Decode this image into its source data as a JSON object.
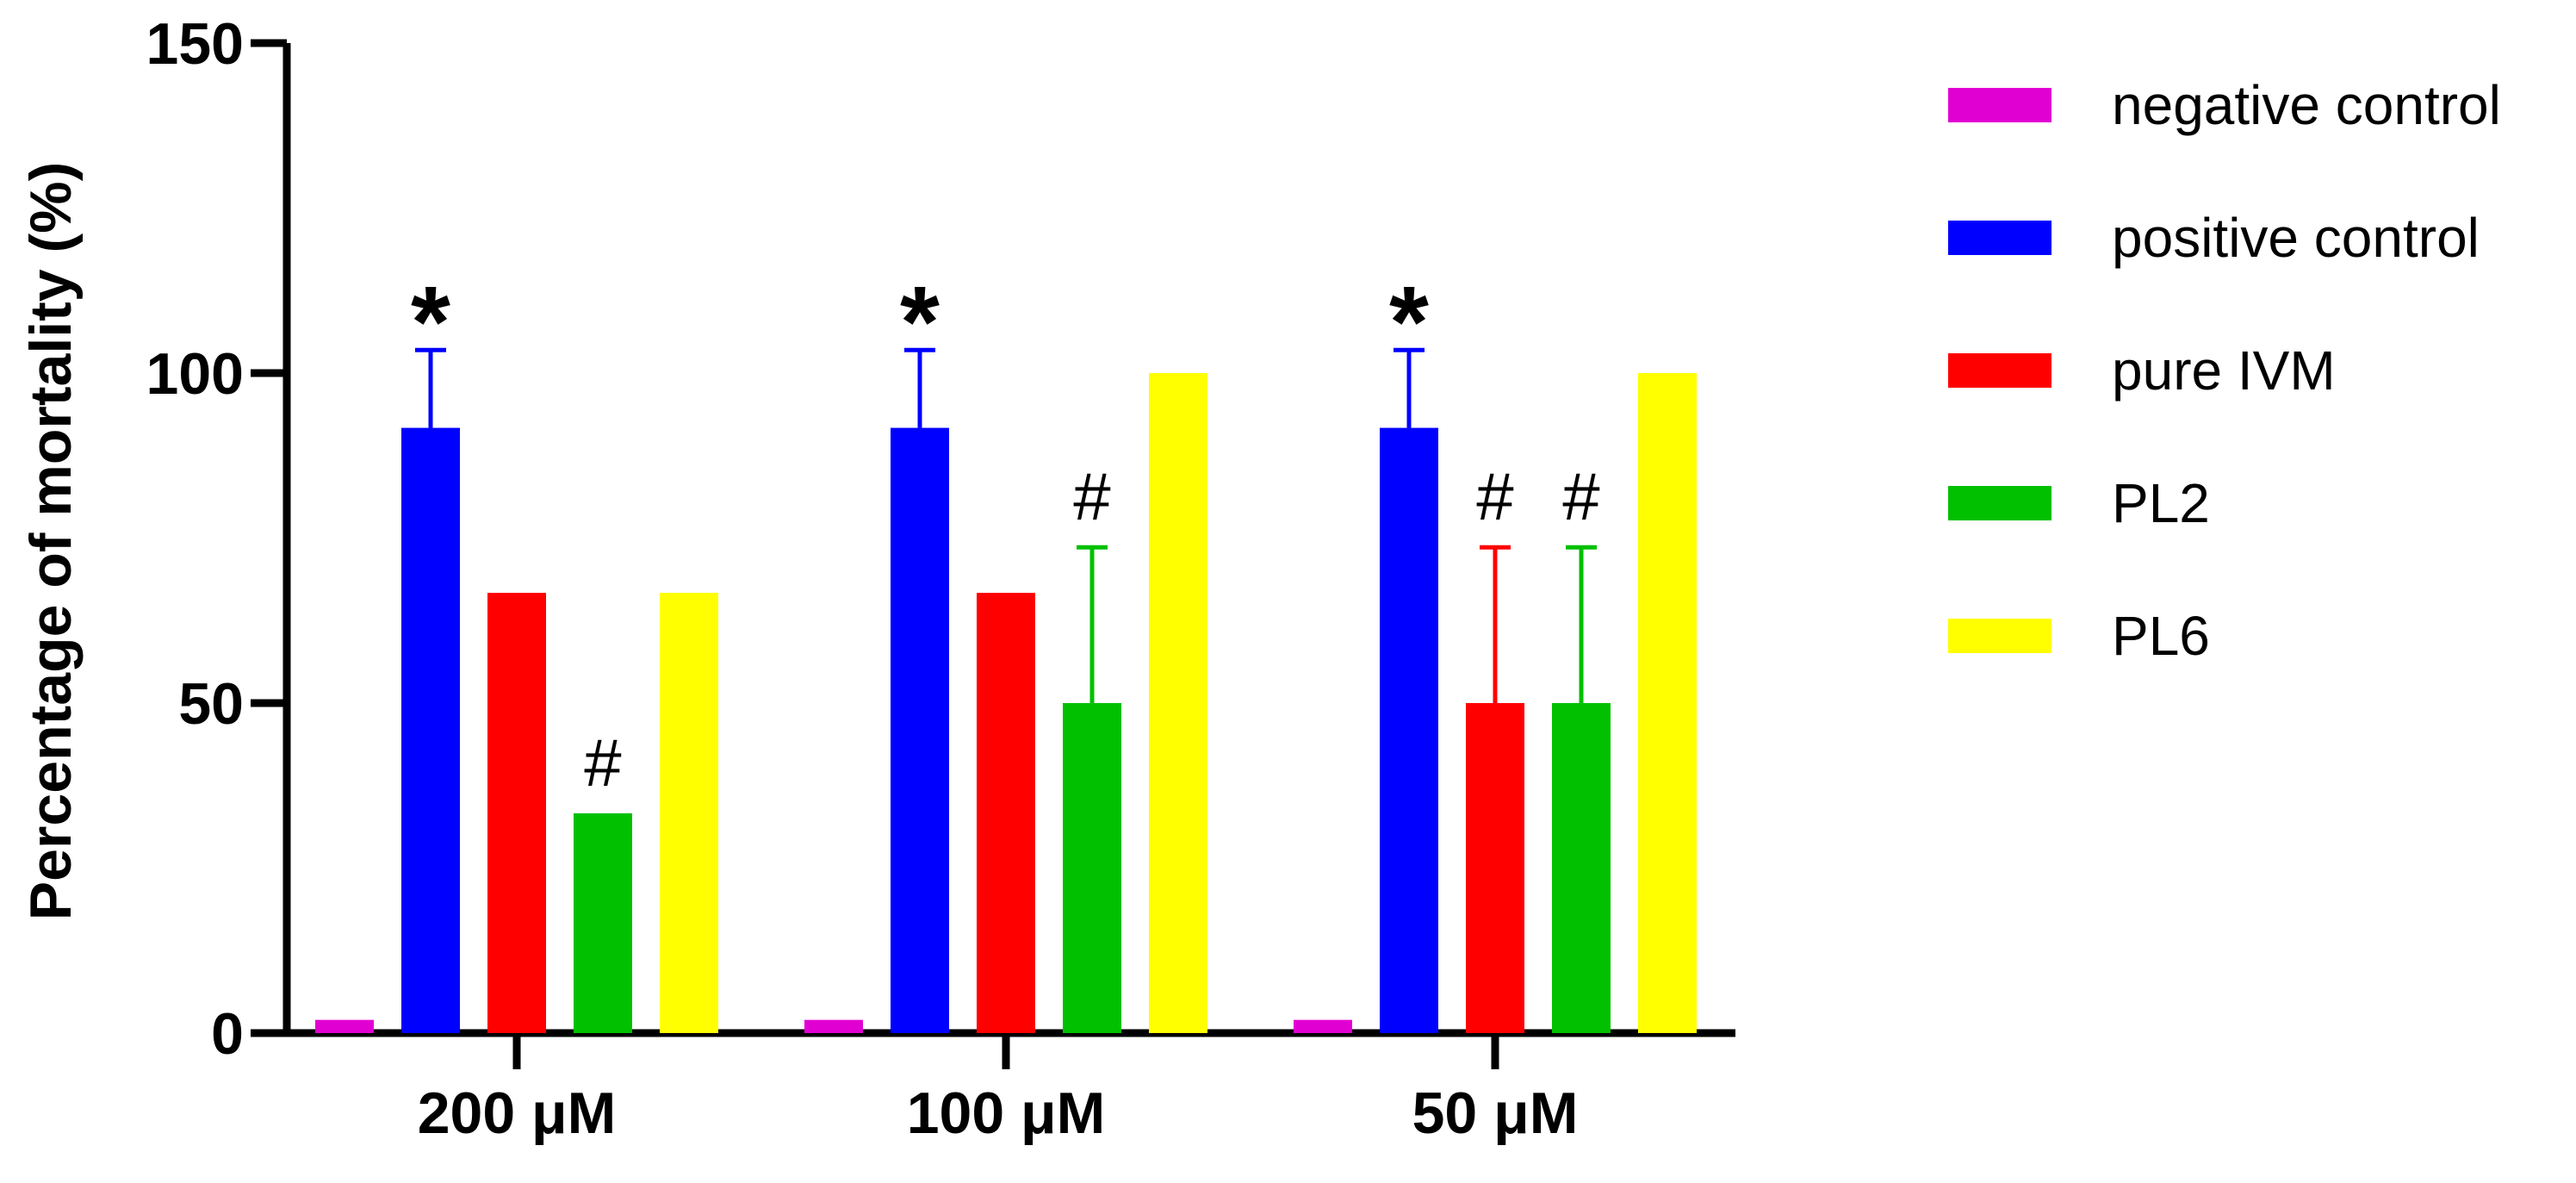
{
  "chart_data": {
    "type": "bar",
    "title": "",
    "xlabel": "",
    "ylabel": "Percentage of mortality (%)",
    "ylim": [
      0,
      150
    ],
    "yticks": [
      0,
      50,
      100,
      150
    ],
    "grid": false,
    "legend_placement": "right",
    "categories": [
      "200 μM",
      "100 μM",
      "50 μM"
    ],
    "series": [
      {
        "name": "negative control",
        "color": "#e100d2",
        "values": [
          2,
          2,
          2
        ],
        "error": [
          0,
          0,
          0
        ]
      },
      {
        "name": "positive control",
        "color": "#0000ff",
        "values": [
          91.7,
          91.7,
          91.7
        ],
        "error": [
          11.8,
          11.8,
          11.8
        ]
      },
      {
        "name": "pure IVM",
        "color": "#ff0000",
        "values": [
          66.7,
          66.7,
          50
        ],
        "error": [
          0,
          0,
          23.6
        ]
      },
      {
        "name": "PL2",
        "color": "#00c000",
        "values": [
          33.3,
          50,
          50
        ],
        "error": [
          0,
          23.6,
          23.6
        ]
      },
      {
        "name": "PL6",
        "color": "#ffff00",
        "values": [
          66.7,
          100,
          100
        ],
        "error": [
          0,
          0,
          0
        ]
      }
    ],
    "annotations": [
      {
        "text": "*",
        "category": 0,
        "series": 1,
        "style": "star"
      },
      {
        "text": "#",
        "category": 0,
        "series": 3,
        "style": "hash"
      },
      {
        "text": "*",
        "category": 1,
        "series": 1,
        "style": "star"
      },
      {
        "text": "#",
        "category": 1,
        "series": 3,
        "style": "hash"
      },
      {
        "text": "*",
        "category": 2,
        "series": 1,
        "style": "star"
      },
      {
        "text": "#",
        "category": 2,
        "series": 2,
        "style": "hash"
      },
      {
        "text": "#",
        "category": 2,
        "series": 3,
        "style": "hash"
      }
    ]
  }
}
